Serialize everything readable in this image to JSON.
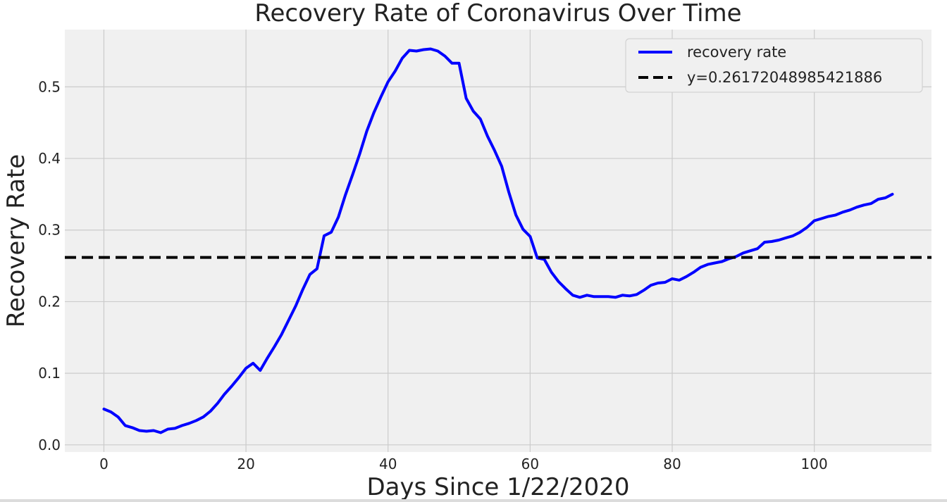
{
  "chart_data": {
    "type": "line",
    "title": "Recovery Rate of Coronavirus Over Time",
    "xlabel": "Days Since 1/22/2020",
    "ylabel": "Recovery Rate",
    "xlim": [
      -5.5,
      116.5
    ],
    "ylim": [
      -0.01,
      0.58
    ],
    "xticks": [
      0,
      20,
      40,
      60,
      80,
      100
    ],
    "yticks": [
      0.0,
      0.1,
      0.2,
      0.3,
      0.4,
      0.5
    ],
    "xtick_labels": [
      "0",
      "20",
      "40",
      "60",
      "80",
      "100"
    ],
    "ytick_labels": [
      "0.0",
      "0.1",
      "0.2",
      "0.3",
      "0.4",
      "0.5"
    ],
    "grid": true,
    "legend_position": "top-right",
    "series": [
      {
        "name": "recovery rate",
        "color": "#0000ff",
        "style": "solid",
        "x": [
          0,
          1,
          2,
          3,
          4,
          5,
          6,
          7,
          8,
          9,
          10,
          11,
          12,
          13,
          14,
          15,
          16,
          17,
          18,
          19,
          20,
          21,
          22,
          23,
          24,
          25,
          26,
          27,
          28,
          29,
          30,
          31,
          32,
          33,
          34,
          35,
          36,
          37,
          38,
          39,
          40,
          41,
          42,
          43,
          44,
          45,
          46,
          47,
          48,
          49,
          50,
          51,
          52,
          53,
          54,
          55,
          56,
          57,
          58,
          59,
          60,
          61,
          62,
          63,
          64,
          65,
          66,
          67,
          68,
          69,
          70,
          71,
          72,
          73,
          74,
          75,
          76,
          77,
          78,
          79,
          80,
          81,
          82,
          83,
          84,
          85,
          86,
          87,
          88,
          89,
          90,
          91,
          92,
          93,
          94,
          95,
          96,
          97,
          98,
          99,
          100,
          101,
          102,
          103,
          104,
          105,
          106,
          107,
          108,
          109,
          110,
          111
        ],
        "y": [
          0.05,
          0.046,
          0.039,
          0.027,
          0.024,
          0.02,
          0.019,
          0.02,
          0.017,
          0.022,
          0.023,
          0.027,
          0.03,
          0.034,
          0.039,
          0.047,
          0.058,
          0.071,
          0.082,
          0.094,
          0.107,
          0.114,
          0.104,
          0.121,
          0.137,
          0.154,
          0.174,
          0.194,
          0.217,
          0.238,
          0.246,
          0.292,
          0.297,
          0.318,
          0.349,
          0.377,
          0.406,
          0.438,
          0.464,
          0.486,
          0.507,
          0.522,
          0.54,
          0.551,
          0.55,
          0.552,
          0.553,
          0.55,
          0.543,
          0.533,
          0.533,
          0.484,
          0.466,
          0.455,
          0.431,
          0.411,
          0.389,
          0.353,
          0.321,
          0.301,
          0.291,
          0.261,
          0.259,
          0.241,
          0.228,
          0.218,
          0.209,
          0.206,
          0.209,
          0.207,
          0.207,
          0.207,
          0.206,
          0.209,
          0.208,
          0.21,
          0.216,
          0.223,
          0.226,
          0.227,
          0.232,
          0.23,
          0.235,
          0.241,
          0.248,
          0.252,
          0.254,
          0.256,
          0.26,
          0.263,
          0.268,
          0.271,
          0.274,
          0.283,
          0.284,
          0.286,
          0.289,
          0.292,
          0.297,
          0.304,
          0.313,
          0.316,
          0.319,
          0.321,
          0.325,
          0.328,
          0.332,
          0.335,
          0.337,
          0.343,
          0.345,
          0.35
        ]
      },
      {
        "name": "y=0.26172048985421886",
        "color": "#000000",
        "style": "dashed",
        "value": 0.26172048985421886
      }
    ]
  }
}
